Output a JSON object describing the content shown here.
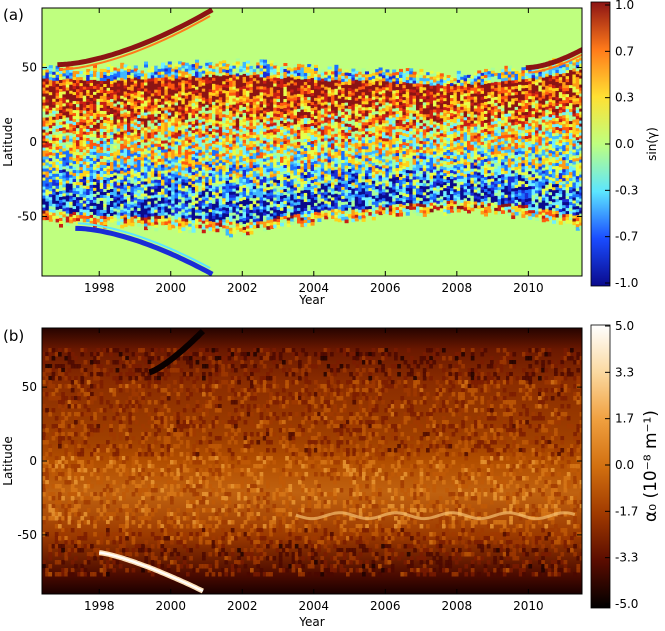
{
  "chart_data": [
    {
      "panel_label": "(a)",
      "type": "heatmap",
      "xlabel": "Year",
      "ylabel": "Latitude",
      "xlim": [
        1996.4,
        2011.5
      ],
      "ylim": [
        -90,
        90
      ],
      "x_ticks": [
        "1998",
        "2000",
        "2002",
        "2004",
        "2006",
        "2008",
        "2010"
      ],
      "y_ticks": [
        "50",
        "0",
        "-50"
      ],
      "colorbar": {
        "label": "sin(γ)",
        "range": [
          -1.0,
          1.0
        ],
        "ticks": [
          "1.0",
          "0.7",
          "0.3",
          "0.0",
          "-0.3",
          "-0.7",
          "-1.0"
        ],
        "colormap": "jet",
        "colors": [
          "#0a0a8c",
          "#1a4cff",
          "#5ce6ff",
          "#bfff7f",
          "#ffe033",
          "#ff7a1a",
          "#8c1414"
        ]
      },
      "background_color": "#bfff7f",
      "band": [
        {
          "year": 1996.4,
          "north": 50,
          "south": -52
        },
        {
          "year": 1998,
          "north": 50,
          "south": -54
        },
        {
          "year": 2000,
          "north": 52,
          "south": -56
        },
        {
          "year": 2002,
          "north": 54,
          "south": -60
        },
        {
          "year": 2004,
          "north": 50,
          "south": -52
        },
        {
          "year": 2006,
          "north": 48,
          "south": -48
        },
        {
          "year": 2008,
          "north": 45,
          "south": -44
        },
        {
          "year": 2010,
          "north": 50,
          "south": -48
        },
        {
          "year": 2011.5,
          "north": 58,
          "south": -56
        }
      ],
      "polar_arms": [
        {
          "sign": 1,
          "from_year": 1996.9,
          "to_year": 2001.1,
          "from_lat": 52,
          "to_lat": 88
        },
        {
          "sign": -1,
          "from_year": 1997.4,
          "to_year": 2001.1,
          "from_lat": -58,
          "to_lat": -88
        },
        {
          "sign": 1,
          "from_year": 2010.0,
          "to_year": 2011.5,
          "from_lat": 50,
          "to_lat": 62
        }
      ]
    },
    {
      "panel_label": "(b)",
      "type": "heatmap",
      "xlabel": "Year",
      "ylabel": "Latitude",
      "xlim": [
        1996.4,
        2011.5
      ],
      "ylim": [
        -90,
        90
      ],
      "x_ticks": [
        "1998",
        "2000",
        "2002",
        "2004",
        "2006",
        "2008",
        "2010"
      ],
      "y_ticks": [
        "50",
        "0",
        "-50"
      ],
      "colorbar": {
        "label": "α₀ (10⁻⁸ m⁻¹)",
        "range": [
          -5.0,
          5.0
        ],
        "ticks": [
          "5.0",
          "3.3",
          "1.7",
          "0.0",
          "-1.7",
          "-3.3",
          "-5.0"
        ],
        "colormap": "afmhot",
        "colors": [
          "#000000",
          "#5a0c00",
          "#a03a00",
          "#d27010",
          "#f0a040",
          "#fbd9a0",
          "#ffffff"
        ]
      },
      "polar_arms": [
        {
          "sign": 1,
          "from_year": 1999.4,
          "to_year": 2000.9,
          "from_lat": 60,
          "to_lat": 88
        },
        {
          "sign": -1,
          "from_year": 1998.0,
          "to_year": 2000.9,
          "from_lat": -62,
          "to_lat": -88
        }
      ]
    }
  ]
}
